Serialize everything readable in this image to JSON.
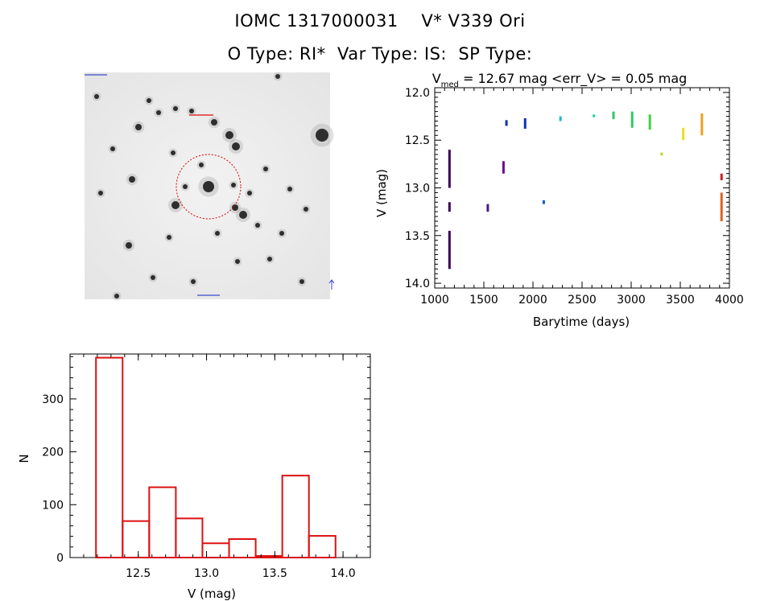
{
  "header": {
    "line1": "IOMC 1317000031    V* V339 Ori",
    "line2": "O Type: RI*  Var Type: IS:  SP Type:"
  },
  "image_panel": {
    "type": "image",
    "description_icon": "star-field-image"
  },
  "chart_data": [
    {
      "type": "scatter",
      "title_prefix": "V",
      "title_sub": "med",
      "title_rest": " = 12.67 mag <err_V> = 0.05 mag",
      "xlabel": "Barytime (days)",
      "ylabel": "V (mag)",
      "xlim": [
        1000,
        4000
      ],
      "ylim": [
        14.05,
        11.95
      ],
      "y_inverted": true,
      "xticks": [
        1000,
        1500,
        2000,
        2500,
        3000,
        3500,
        4000
      ],
      "yticks": [
        "12.0",
        "12.5",
        "13.0",
        "13.5",
        "14.0"
      ],
      "ytick_values": [
        12.0,
        12.5,
        13.0,
        13.5,
        14.0
      ],
      "series": [
        {
          "color": "#3b0055",
          "segments": [
            [
              1150,
              12.6,
              13.0
            ],
            [
              1150,
              13.15,
              13.25
            ],
            [
              1150,
              13.45,
              13.85
            ]
          ]
        },
        {
          "color": "#4b1a88",
          "segments": [
            [
              1540,
              13.17,
              13.25
            ]
          ]
        },
        {
          "color": "#6a0e8a",
          "segments": [
            [
              1700,
              12.72,
              12.85
            ]
          ]
        },
        {
          "color": "#1030b0",
          "segments": [
            [
              1730,
              12.29,
              12.35
            ],
            [
              1920,
              12.27,
              12.38
            ]
          ]
        },
        {
          "color": "#1060c8",
          "segments": [
            [
              2110,
              13.13,
              13.17
            ]
          ]
        },
        {
          "color": "#20b8d8",
          "segments": [
            [
              2280,
              12.25,
              12.3
            ]
          ]
        },
        {
          "color": "#20d8a0",
          "segments": [
            [
              2620,
              12.23,
              12.26
            ]
          ]
        },
        {
          "color": "#30c860",
          "segments": [
            [
              2820,
              12.2,
              12.28
            ],
            [
              3010,
              12.2,
              12.37
            ]
          ]
        },
        {
          "color": "#40d040",
          "segments": [
            [
              3190,
              12.23,
              12.39
            ]
          ]
        },
        {
          "color": "#a8e020",
          "segments": [
            [
              3310,
              12.63,
              12.66
            ]
          ]
        },
        {
          "color": "#e8e020",
          "segments": [
            [
              3530,
              12.37,
              12.5
            ]
          ]
        },
        {
          "color": "#f0a020",
          "segments": [
            [
              3720,
              12.22,
              12.45
            ]
          ]
        },
        {
          "color": "#e06020",
          "segments": [
            [
              3920,
              13.05,
              13.35
            ]
          ]
        },
        {
          "color": "#d02020",
          "segments": [
            [
              3920,
              12.85,
              12.92
            ]
          ]
        }
      ]
    },
    {
      "type": "bar",
      "xlabel": "V (mag)",
      "ylabel": "N",
      "xlim": [
        12.0,
        14.2
      ],
      "ylim": [
        0,
        385
      ],
      "xticks": [
        "12.5",
        "13.0",
        "13.5",
        "14.0"
      ],
      "xtick_values": [
        12.5,
        13.0,
        13.5,
        14.0
      ],
      "yticks": [
        "0",
        "100",
        "200",
        "300"
      ],
      "ytick_values": [
        0,
        100,
        200,
        300
      ],
      "bar_color": "#dd1111",
      "bin_width": 0.195,
      "bins": [
        {
          "x0": 12.19,
          "value": 378
        },
        {
          "x0": 12.385,
          "value": 69
        },
        {
          "x0": 12.58,
          "value": 133
        },
        {
          "x0": 12.775,
          "value": 74
        },
        {
          "x0": 12.97,
          "value": 27
        },
        {
          "x0": 13.165,
          "value": 35
        },
        {
          "x0": 13.36,
          "value": 3
        },
        {
          "x0": 13.555,
          "value": 155
        },
        {
          "x0": 13.75,
          "value": 41
        }
      ]
    }
  ]
}
